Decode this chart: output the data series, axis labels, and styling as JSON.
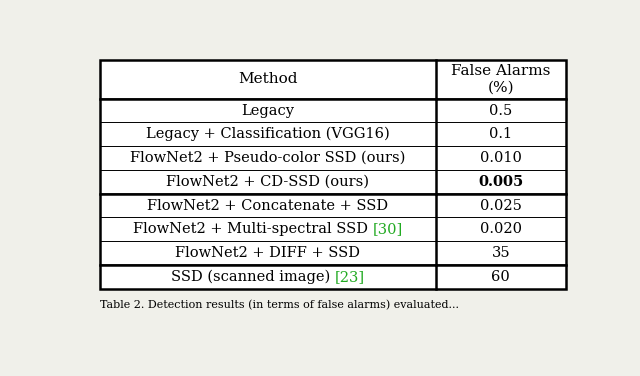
{
  "col_headers": [
    "Method",
    "False Alarms\n(%)"
  ],
  "rows": [
    {
      "method_parts": [
        {
          "text": "Legacy",
          "color": "black"
        }
      ],
      "value": "0.5",
      "value_bold": false,
      "section": 1
    },
    {
      "method_parts": [
        {
          "text": "Legacy + Classification (VGG16)",
          "color": "black"
        }
      ],
      "value": "0.1",
      "value_bold": false,
      "section": 1
    },
    {
      "method_parts": [
        {
          "text": "FlowNet2 + Pseudo-color SSD (ours)",
          "color": "black"
        }
      ],
      "value": "0.010",
      "value_bold": false,
      "section": 1
    },
    {
      "method_parts": [
        {
          "text": "FlowNet2 + CD-SSD (ours)",
          "color": "black"
        }
      ],
      "value": "0.005",
      "value_bold": true,
      "section": 1
    },
    {
      "method_parts": [
        {
          "text": "FlowNet2 + Concatenate + SSD",
          "color": "black"
        }
      ],
      "value": "0.025",
      "value_bold": false,
      "section": 2
    },
    {
      "method_parts": [
        {
          "text": "FlowNet2 + Multi-spectral SSD ",
          "color": "black"
        },
        {
          "text": "[30]",
          "color": "#22aa22"
        }
      ],
      "value": "0.020",
      "value_bold": false,
      "section": 2
    },
    {
      "method_parts": [
        {
          "text": "FlowNet2 + DIFF + SSD",
          "color": "black"
        }
      ],
      "value": "35",
      "value_bold": false,
      "section": 2
    },
    {
      "method_parts": [
        {
          "text": "SSD (scanned image) ",
          "color": "black"
        },
        {
          "text": "[23]",
          "color": "#22aa22"
        }
      ],
      "value": "60",
      "value_bold": false,
      "section": 3
    }
  ],
  "caption": "Table 2. Detection results (in terms of false alarms) evaluated...",
  "bg_color": "#f0f0ea",
  "font_size": 10.5,
  "header_font_size": 11,
  "caption_font_size": 8
}
